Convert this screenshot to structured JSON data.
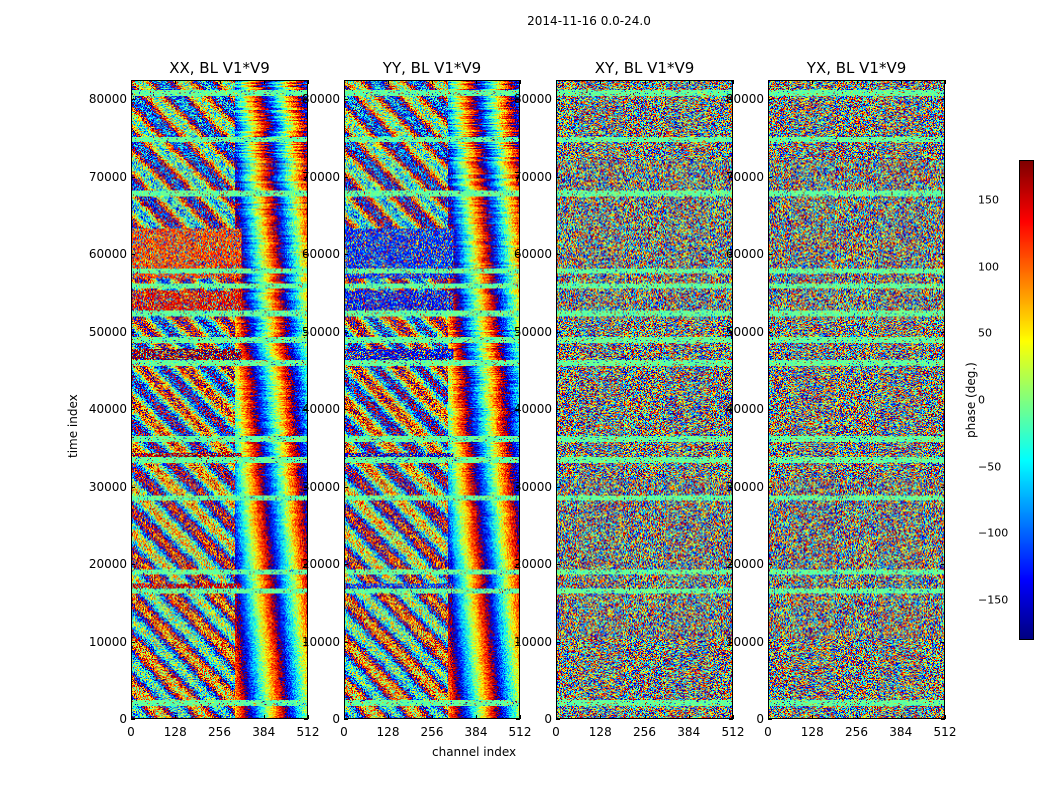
{
  "suptitle": "2014-11-16 0.0-24.0",
  "chart_data": {
    "type": "heatmap",
    "panels": [
      {
        "title": "XX, BL V1*V9",
        "corr": "XX"
      },
      {
        "title": "YY, BL V1*V9",
        "corr": "YY"
      },
      {
        "title": "XY, BL V1*V9",
        "corr": "XY"
      },
      {
        "title": "YX, BL V1*V9",
        "corr": "YX"
      }
    ],
    "xlabel": "channel index",
    "ylabel": "time index",
    "xlim": [
      0,
      512
    ],
    "ylim": [
      0,
      82500
    ],
    "xticks": [
      0,
      128,
      256,
      384,
      512
    ],
    "yticks": [
      0,
      10000,
      20000,
      30000,
      40000,
      50000,
      60000,
      70000,
      80000
    ],
    "colorbar": {
      "label": "phase (deg.)",
      "range": [
        -180,
        180
      ],
      "ticks": [
        -150,
        -100,
        -50,
        0,
        50,
        100,
        150
      ],
      "tick_labels": [
        "−150",
        "−100",
        "−50",
        "0",
        "50",
        "100",
        "150"
      ],
      "colormap": "jet"
    },
    "flagged_bands_time": [
      2000,
      16500,
      19000,
      28500,
      33500,
      36200,
      46000,
      49000,
      52500,
      56000,
      58000,
      68000,
      75000,
      81000
    ],
    "coherent_phase_bands": [
      {
        "range": [
          46000,
          47800
        ],
        "XX": 170,
        "YY": -140
      },
      {
        "range": [
          33500,
          34400
        ],
        "XX": 160,
        "YY": -150
      },
      {
        "range": [
          52500,
          55500
        ],
        "XX": 140,
        "YY": -130
      },
      {
        "range": [
          57000,
          63500
        ],
        "XX": 110,
        "YY": -120
      },
      {
        "range": [
          16500,
          17500
        ],
        "XX": 150,
        "YY": -120
      },
      {
        "range": [
          36000,
          36600
        ],
        "XX": 150,
        "YY": -110
      }
    ]
  }
}
